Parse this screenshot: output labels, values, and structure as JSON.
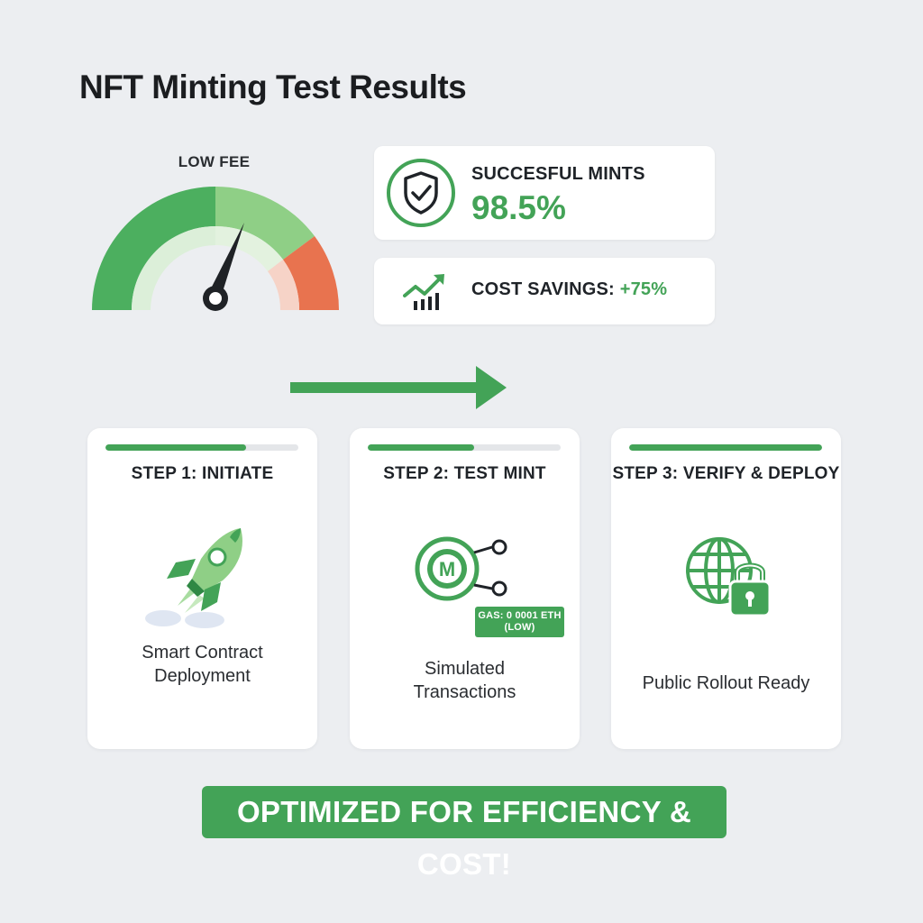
{
  "title": "NFT Minting Test Results",
  "gauge": {
    "label": "LOW FEE",
    "level": 0.7,
    "colors": {
      "green": "#4caf5f",
      "light_green": "#8fcf86",
      "orange": "#e8734f"
    }
  },
  "stats": {
    "mints": {
      "label": "SUCCESFUL MINTS",
      "value": "98.5%",
      "icon": "shield-check-icon"
    },
    "savings": {
      "label": "COST SAVINGS:",
      "value": "+75%",
      "icon": "trending-up-chart-icon"
    }
  },
  "steps": [
    {
      "title": "STEP 1: INITIATE",
      "progress": 0.73,
      "icon": "rocket-icon",
      "desc_line1": "Smart Contract",
      "desc_line2": "Deployment"
    },
    {
      "title": "STEP 2: TEST MINT",
      "progress": 0.55,
      "icon": "mint-coin-icon",
      "desc_line1": "Simulated",
      "desc_line2": "Transactions",
      "badge_line1": "GAS: 0 0001 ETH",
      "badge_line2": "(LOW)"
    },
    {
      "title": "STEP 3: VERIFY & DEPLOY",
      "progress": 1.0,
      "icon": "globe-lock-icon",
      "desc_line1": "Public Rollout Ready"
    }
  ],
  "coin_letter": "M",
  "banner": "OPTIMIZED FOR EFFICIENCY & COST!",
  "accent_color": "#43a357"
}
